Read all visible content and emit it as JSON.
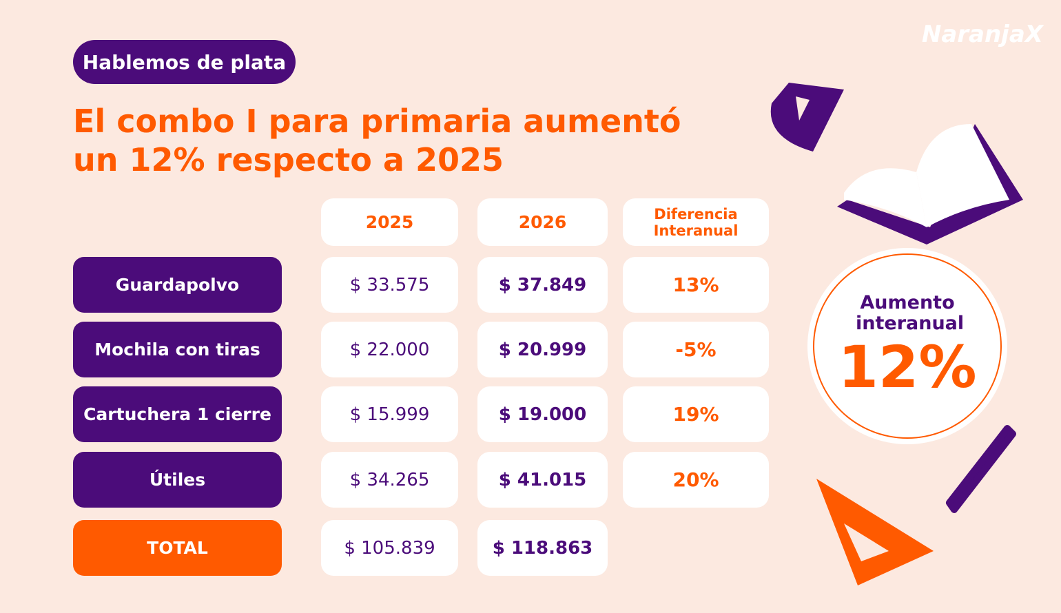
{
  "logo": "NaranjaX",
  "header": {
    "tag": "Hablemos de plata",
    "title_lines": [
      "El combo I para primaria aumentó",
      "un 12% respecto a 2025"
    ]
  },
  "table": {
    "columns": [
      "2025",
      "2026",
      "Diferencia Interanual"
    ],
    "rows": [
      [
        "Guardapolvo",
        "$ 33.575",
        "$ 37.849",
        "13%"
      ],
      [
        "Mochila con tiras",
        "$ 22.000",
        "$ 20.999",
        "-5%"
      ],
      [
        "Cartuchera 1 cierre",
        "$ 15.999",
        "$ 19.000",
        "19%"
      ],
      [
        "Útiles",
        "$ 34.265",
        "$ 41.015",
        "20%"
      ],
      [
        "TOTAL",
        "$ 105.839",
        "$ 118.863"
      ]
    ]
  },
  "badge": {
    "label": "Aumento interanual",
    "value": "12%"
  }
}
